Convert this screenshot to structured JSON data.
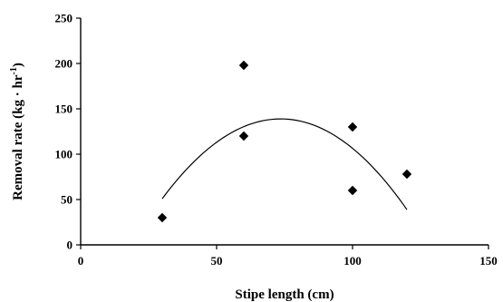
{
  "chart_data": {
    "type": "scatter",
    "title": "",
    "xlabel": "Stipe length (cm)",
    "ylabel_main": "Removal rate (kg · hr",
    "ylabel_sup": "-1",
    "ylabel_close": ")",
    "xlim": [
      0,
      150
    ],
    "ylim": [
      0,
      250
    ],
    "xticks": [
      0,
      50,
      100,
      150
    ],
    "yticks": [
      0,
      50,
      100,
      150,
      200,
      250
    ],
    "grid": false,
    "legend": "none",
    "marker": "diamond",
    "series": [
      {
        "points": [
          {
            "x": 30,
            "y": 30
          },
          {
            "x": 60,
            "y": 198
          },
          {
            "x": 60,
            "y": 120
          },
          {
            "x": 100,
            "y": 130
          },
          {
            "x": 100,
            "y": 60
          },
          {
            "x": 120,
            "y": 78
          }
        ]
      }
    ],
    "trendline": {
      "type": "polynomial-2",
      "x_range": [
        30,
        120
      ],
      "points": [
        {
          "x": 30,
          "y": 51
        },
        {
          "x": 40,
          "y": 86
        },
        {
          "x": 50,
          "y": 113
        },
        {
          "x": 60,
          "y": 131
        },
        {
          "x": 70,
          "y": 139
        },
        {
          "x": 75,
          "y": 139
        },
        {
          "x": 80,
          "y": 137
        },
        {
          "x": 90,
          "y": 126
        },
        {
          "x": 100,
          "y": 106
        },
        {
          "x": 110,
          "y": 76
        },
        {
          "x": 120,
          "y": 40
        }
      ]
    }
  }
}
